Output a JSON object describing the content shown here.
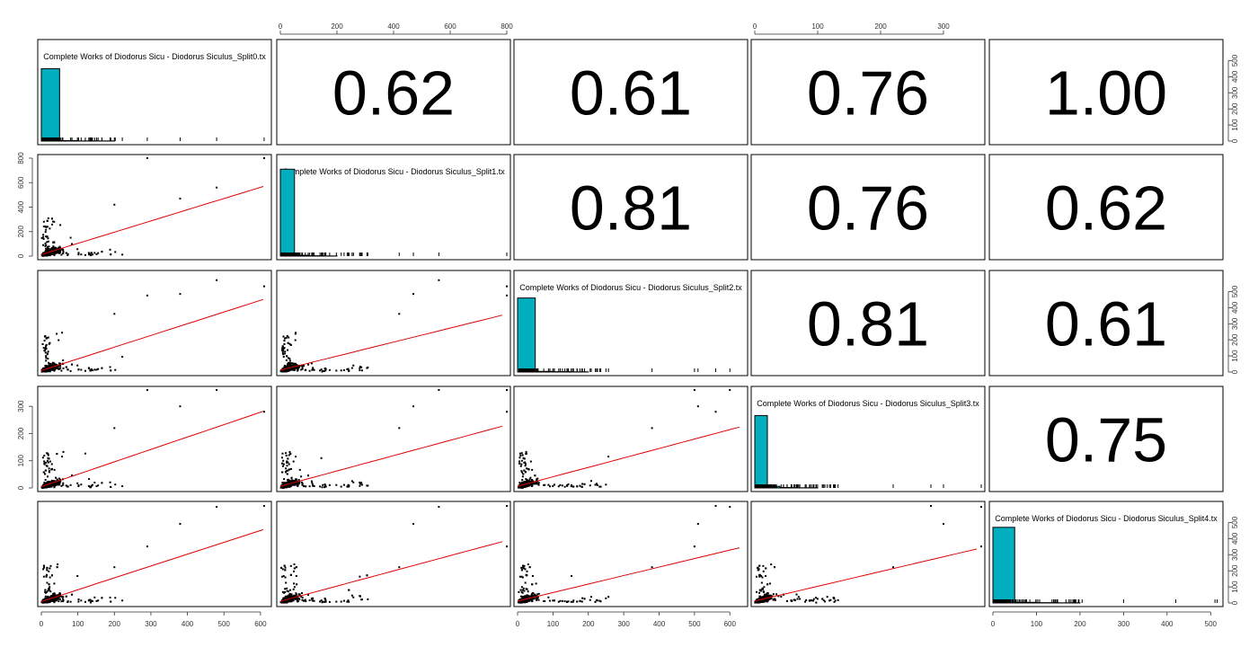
{
  "chart_data": {
    "type": "scatter-matrix",
    "variables": [
      "Complete Works of Diodorus Sicu - Diodorus Siculus_Split0.txt",
      "Complete Works of Diodorus Sicu - Diodorus Siculus_Split1.txt",
      "Complete Works of Diodorus Sicu - Diodorus Siculus_Split2.txt",
      "Complete Works of Diodorus Sicu - Diodorus Siculus_Split3.txt",
      "Complete Works of Diodorus Sicu - Diodorus Siculus_Split4.txt"
    ],
    "variable_labels": [
      "Complete Works of Diodorus Sicu - Diodorus Siculus_Split0.tx",
      "Complete Works of Diodorus Sicu - Diodorus Siculus_Split1.tx",
      "Complete Works of Diodorus Sicu - Diodorus Siculus_Split2.tx",
      "Complete Works of Diodorus Sicu - Diodorus Siculus_Split3.tx",
      "Complete Works of Diodorus Sicu - Diodorus Siculus_Split4.tx"
    ],
    "ranges": [
      [
        0,
        620
      ],
      [
        0,
        800
      ],
      [
        0,
        640
      ],
      [
        0,
        360
      ],
      [
        0,
        520
      ]
    ],
    "ticks": [
      [
        0,
        100,
        200,
        300,
        400,
        500,
        600
      ],
      [
        0,
        200,
        400,
        600,
        800
      ],
      [
        0,
        100,
        200,
        300,
        400,
        500,
        600
      ],
      [
        0,
        100,
        200,
        300
      ],
      [
        0,
        100,
        200,
        300,
        400,
        500
      ]
    ],
    "correlations": [
      {
        "row": 0,
        "col": 1,
        "value": "0.62"
      },
      {
        "row": 0,
        "col": 2,
        "value": "0.61"
      },
      {
        "row": 0,
        "col": 3,
        "value": "0.76"
      },
      {
        "row": 0,
        "col": 4,
        "value": "1.00"
      },
      {
        "row": 1,
        "col": 2,
        "value": "0.81"
      },
      {
        "row": 1,
        "col": 3,
        "value": "0.76"
      },
      {
        "row": 1,
        "col": 4,
        "value": "0.62"
      },
      {
        "row": 2,
        "col": 3,
        "value": "0.81"
      },
      {
        "row": 2,
        "col": 4,
        "value": "0.61"
      },
      {
        "row": 3,
        "col": 4,
        "value": "0.75"
      }
    ],
    "histograms": [
      {
        "bin_width": 50,
        "counts": [
          450,
          3,
          1,
          1,
          0,
          0,
          0,
          0,
          0,
          0,
          0,
          0,
          0
        ]
      },
      {
        "bin_width": 50,
        "counts": [
          540,
          5,
          2,
          1,
          0,
          0,
          0,
          0,
          0,
          0,
          0,
          0,
          0,
          0,
          0,
          0
        ]
      },
      {
        "bin_width": 50,
        "counts": [
          460,
          4,
          2,
          1,
          0,
          0,
          0,
          0,
          0,
          0,
          0,
          0,
          0
        ]
      },
      {
        "bin_width": 20,
        "counts": [
          450,
          10,
          3,
          1,
          1,
          0,
          0,
          0,
          0,
          0,
          0,
          0,
          0,
          0,
          0,
          0,
          0,
          0
        ]
      },
      {
        "bin_width": 50,
        "counts": [
          470,
          4,
          2,
          1,
          0,
          0,
          0,
          0,
          0,
          0,
          0
        ]
      }
    ],
    "histogram_count_axis": {
      "ticks": [
        0,
        100,
        200,
        300,
        400,
        500
      ]
    },
    "outliers": [
      [
        610,
        800,
        560,
        280,
        515
      ],
      [
        480,
        560,
        600,
        360,
        510
      ],
      [
        380,
        470,
        510,
        300,
        420
      ],
      [
        290,
        800,
        500,
        360,
        300
      ],
      [
        200,
        420,
        380,
        220,
        190
      ]
    ],
    "grid": false,
    "legend": "none"
  }
}
